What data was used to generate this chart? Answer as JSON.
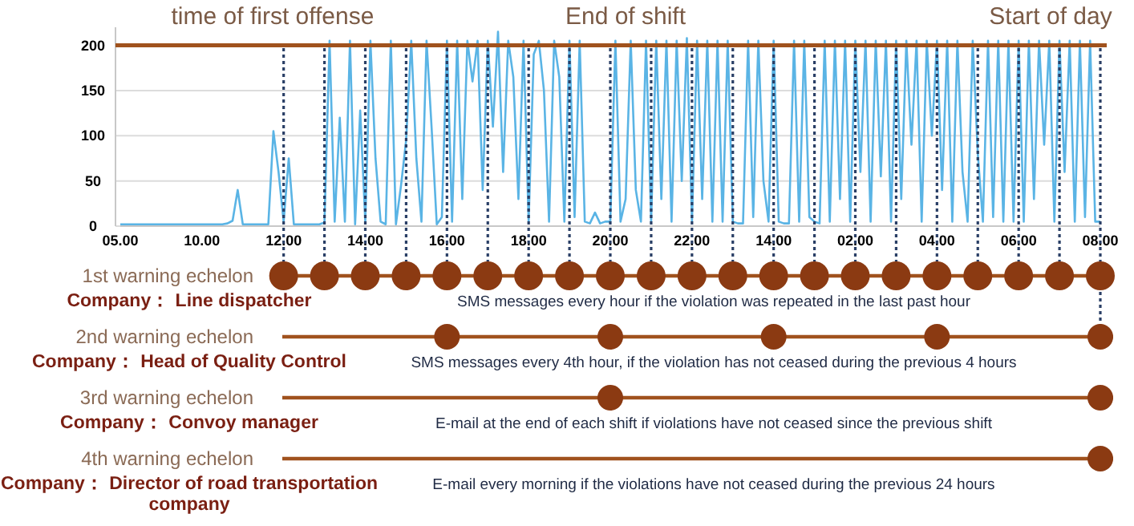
{
  "chart_data": [
    {
      "type": "line",
      "annotations": [
        "time of first offense",
        "End of shift",
        "Start of day"
      ],
      "categories": [
        "05.00",
        null,
        null,
        null,
        null,
        null,
        null,
        null,
        null,
        null,
        null,
        null,
        null,
        null,
        null,
        null,
        "10.00",
        null,
        null,
        null,
        null,
        null,
        null,
        null,
        null,
        null,
        null,
        null,
        null,
        null,
        null,
        null,
        "12.00",
        null,
        null,
        null,
        null,
        null,
        null,
        null,
        null,
        null,
        null,
        null,
        null,
        null,
        null,
        null,
        "14.00",
        null,
        null,
        null,
        null,
        null,
        null,
        null,
        null,
        null,
        null,
        null,
        null,
        null,
        null,
        null,
        "16.00",
        null,
        null,
        null,
        null,
        null,
        null,
        null,
        null,
        null,
        null,
        null,
        null,
        null,
        null,
        null,
        "18.00",
        null,
        null,
        null,
        null,
        null,
        null,
        null,
        null,
        null,
        null,
        null,
        null,
        null,
        null,
        null,
        "20.00",
        null,
        null,
        null,
        null,
        null,
        null,
        null,
        null,
        null,
        null,
        null,
        null,
        null,
        null,
        null,
        "22.00",
        null,
        null,
        null,
        null,
        null,
        null,
        null,
        null,
        null,
        null,
        null,
        null,
        null,
        null,
        null,
        "14.00",
        null,
        null,
        null,
        null,
        null,
        null,
        null,
        null,
        null,
        null,
        null,
        null,
        null,
        null,
        null,
        "02.00",
        null,
        null,
        null,
        null,
        null,
        null,
        null,
        null,
        null,
        null,
        null,
        null,
        null,
        null,
        null,
        "04.00",
        null,
        null,
        null,
        null,
        null,
        null,
        null,
        null,
        null,
        null,
        null,
        null,
        null,
        null,
        null,
        "06.00",
        null,
        null,
        null,
        null,
        null,
        null,
        null,
        null,
        null,
        null,
        null,
        null,
        null,
        null,
        null,
        "08.00"
      ],
      "series": [
        {
          "color": "#5ab4e5",
          "values": [
            2,
            2,
            2,
            2,
            2,
            2,
            2,
            2,
            2,
            2,
            2,
            2,
            2,
            2,
            2,
            2,
            2,
            2,
            2,
            2,
            2,
            3,
            6,
            40,
            2,
            2,
            2,
            2,
            2,
            2,
            105,
            60,
            5,
            75,
            2,
            2,
            2,
            2,
            2,
            2,
            4,
            205,
            5,
            120,
            5,
            205,
            2,
            128,
            5,
            205,
            75,
            5,
            2,
            205,
            2,
            45,
            95,
            205,
            75,
            5,
            205,
            108,
            2,
            10,
            205,
            5,
            205,
            30,
            205,
            160,
            205,
            40,
            205,
            110,
            215,
            60,
            205,
            165,
            30,
            205,
            5,
            190,
            205,
            150,
            5,
            205,
            165,
            5,
            205,
            10,
            205,
            5,
            3,
            15,
            3,
            5,
            5,
            205,
            5,
            30,
            205,
            40,
            5,
            205,
            5,
            205,
            30,
            205,
            5,
            205,
            50,
            208,
            5,
            205,
            30,
            205,
            5,
            205,
            5,
            205,
            5,
            3,
            3,
            205,
            10,
            205,
            50,
            5,
            205,
            5,
            3,
            3,
            205,
            5,
            205,
            10,
            5,
            3,
            205,
            5,
            205,
            30,
            205,
            5,
            205,
            60,
            205,
            5,
            205,
            55,
            205,
            5,
            205,
            30,
            205,
            90,
            205,
            5,
            205,
            100,
            205,
            40,
            205,
            5,
            205,
            60,
            5,
            205,
            80,
            5,
            205,
            10,
            205,
            5,
            205,
            5,
            205,
            5,
            205,
            30,
            205,
            90,
            205,
            5,
            205,
            60,
            205,
            5,
            205,
            10,
            205,
            5,
            5
          ]
        }
      ],
      "ylim": [
        0,
        220
      ],
      "yticks": [
        0,
        50,
        100,
        150,
        200
      ],
      "grid": "y",
      "marker": "none",
      "line_style": "solid",
      "ref_lines": [
        {
          "axis": "y",
          "value": 200,
          "label": null,
          "color": "#a0521d",
          "line_style": "solid"
        }
      ]
    },
    {
      "type": "other",
      "annotations": [
        "1st warning echelon",
        "Company： Line dispatcher",
        "SMS messages every hour if the violation was repeated in the last past hour",
        "2nd warning echelon",
        "Company： Head of Quality Control",
        "SMS messages every 4th hour, if the violation has not ceased during the previous 4 hours",
        "3rd warning echelon",
        "Company： Convoy manager",
        "E-mail at the end of each shift if violations have not ceased since the previous shift",
        "4th warning echelon",
        "Company： Director of road transportation company",
        "E-mail every morning if the violations have not ceased during the previous 24 hours"
      ]
    }
  ]
}
